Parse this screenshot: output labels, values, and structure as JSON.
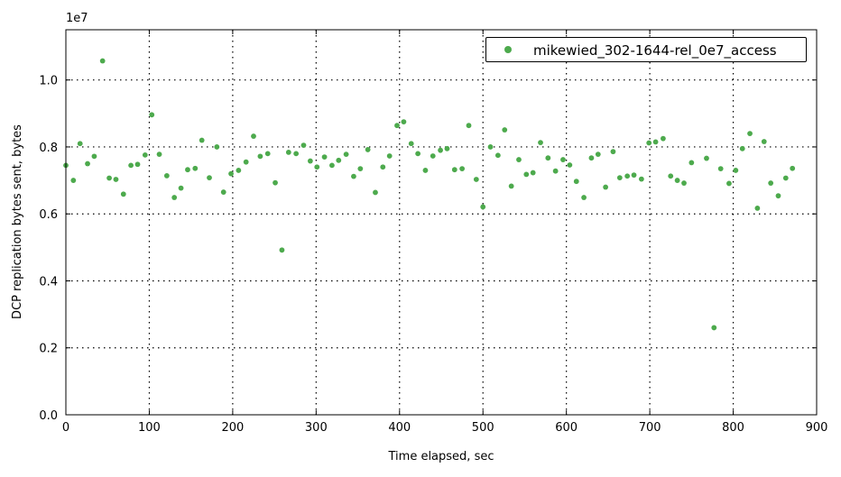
{
  "colors": {
    "series": "#4daa4d",
    "grid": "#000000",
    "axis": "#000000"
  },
  "chart_data": {
    "type": "scatter",
    "title": "",
    "xlabel": "Time elapsed, sec",
    "ylabel": "DCP replication bytes sent, bytes",
    "y_multiplier_label": "1e7",
    "xlim": [
      0,
      900
    ],
    "ylim": [
      0,
      11500000
    ],
    "x_ticks": [
      0,
      100,
      200,
      300,
      400,
      500,
      600,
      700,
      800,
      900
    ],
    "x_tick_labels": [
      "0",
      "100",
      "200",
      "300",
      "400",
      "500",
      "600",
      "700",
      "800",
      "900"
    ],
    "y_ticks": [
      0,
      2000000,
      4000000,
      6000000,
      8000000,
      10000000
    ],
    "y_tick_labels": [
      "0.0",
      "0.2",
      "0.4",
      "0.6",
      "0.8",
      "1.0"
    ],
    "grid": true,
    "legend_position": "top-right",
    "series": [
      {
        "name": "mikewied_302-1644-rel_0e7_access",
        "points": [
          [
            0,
            7450000
          ],
          [
            9,
            7000000
          ],
          [
            17,
            8100000
          ],
          [
            26,
            7500000
          ],
          [
            34,
            7720000
          ],
          [
            44,
            10570000
          ],
          [
            52,
            7070000
          ],
          [
            60,
            7030000
          ],
          [
            69,
            6590000
          ],
          [
            78,
            7450000
          ],
          [
            86,
            7480000
          ],
          [
            95,
            7760000
          ],
          [
            103,
            8960000
          ],
          [
            112,
            7780000
          ],
          [
            121,
            7140000
          ],
          [
            130,
            6490000
          ],
          [
            138,
            6770000
          ],
          [
            146,
            7320000
          ],
          [
            155,
            7360000
          ],
          [
            163,
            8200000
          ],
          [
            172,
            7080000
          ],
          [
            181,
            8000000
          ],
          [
            189,
            6650000
          ],
          [
            198,
            7200000
          ],
          [
            207,
            7300000
          ],
          [
            216,
            7550000
          ],
          [
            225,
            8320000
          ],
          [
            233,
            7720000
          ],
          [
            242,
            7800000
          ],
          [
            251,
            6930000
          ],
          [
            259,
            4920000
          ],
          [
            267,
            7840000
          ],
          [
            276,
            7800000
          ],
          [
            285,
            8050000
          ],
          [
            293,
            7580000
          ],
          [
            301,
            7400000
          ],
          [
            310,
            7700000
          ],
          [
            319,
            7450000
          ],
          [
            327,
            7600000
          ],
          [
            336,
            7780000
          ],
          [
            345,
            7120000
          ],
          [
            353,
            7350000
          ],
          [
            362,
            7920000
          ],
          [
            371,
            6640000
          ],
          [
            380,
            7400000
          ],
          [
            388,
            7730000
          ],
          [
            397,
            8640000
          ],
          [
            405,
            8750000
          ],
          [
            414,
            8100000
          ],
          [
            422,
            7800000
          ],
          [
            431,
            7300000
          ],
          [
            440,
            7730000
          ],
          [
            449,
            7900000
          ],
          [
            457,
            7950000
          ],
          [
            466,
            7320000
          ],
          [
            475,
            7350000
          ],
          [
            483,
            8640000
          ],
          [
            492,
            7030000
          ],
          [
            500,
            6210000
          ],
          [
            509,
            8000000
          ],
          [
            518,
            7750000
          ],
          [
            526,
            8510000
          ],
          [
            534,
            6830000
          ],
          [
            543,
            7620000
          ],
          [
            552,
            7180000
          ],
          [
            560,
            7230000
          ],
          [
            569,
            8130000
          ],
          [
            578,
            7670000
          ],
          [
            587,
            7280000
          ],
          [
            596,
            7620000
          ],
          [
            604,
            7460000
          ],
          [
            612,
            6970000
          ],
          [
            621,
            6490000
          ],
          [
            630,
            7670000
          ],
          [
            638,
            7780000
          ],
          [
            647,
            6800000
          ],
          [
            656,
            7860000
          ],
          [
            664,
            7080000
          ],
          [
            673,
            7130000
          ],
          [
            681,
            7160000
          ],
          [
            690,
            7040000
          ],
          [
            699,
            8120000
          ],
          [
            707,
            8150000
          ],
          [
            716,
            8250000
          ],
          [
            725,
            7130000
          ],
          [
            733,
            7000000
          ],
          [
            741,
            6920000
          ],
          [
            750,
            7530000
          ],
          [
            768,
            7660000
          ],
          [
            777,
            2600000
          ],
          [
            785,
            7350000
          ],
          [
            795,
            6910000
          ],
          [
            803,
            7300000
          ],
          [
            811,
            7950000
          ],
          [
            820,
            8400000
          ],
          [
            829,
            6170000
          ],
          [
            837,
            8160000
          ],
          [
            845,
            6920000
          ],
          [
            854,
            6540000
          ],
          [
            863,
            7070000
          ],
          [
            871,
            7360000
          ]
        ]
      }
    ]
  }
}
